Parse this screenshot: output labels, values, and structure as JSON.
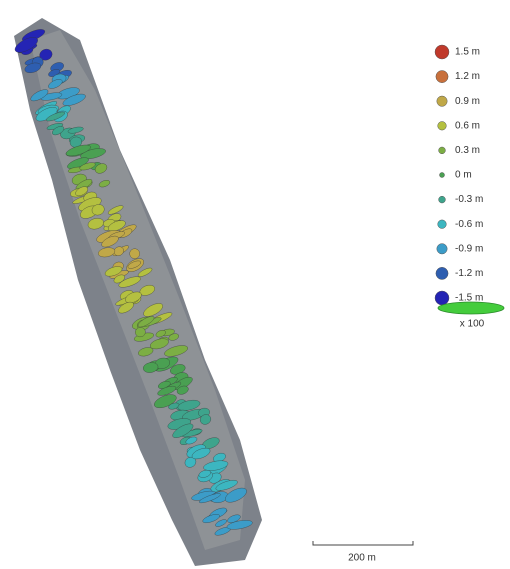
{
  "legend": {
    "items": [
      {
        "label": "1.5 m",
        "color": "#c0392b"
      },
      {
        "label": "1.2 m",
        "color": "#c8703c"
      },
      {
        "label": "0.9 m",
        "color": "#c0a848"
      },
      {
        "label": "0.6 m",
        "color": "#b4c040"
      },
      {
        "label": "0.3 m",
        "color": "#7cae44"
      },
      {
        "label": "0 m",
        "color": "#4aa052"
      },
      {
        "label": "-0.3 m",
        "color": "#3ea48c"
      },
      {
        "label": "-0.6 m",
        "color": "#3cb6c0"
      },
      {
        "label": "-0.9 m",
        "color": "#3c9cc8"
      },
      {
        "label": "-1.2 m",
        "color": "#2e5eb0"
      },
      {
        "label": "-1.5 m",
        "color": "#2424b4"
      }
    ],
    "scale_label": "x 100"
  },
  "scale_bar": {
    "label": "200 m"
  }
}
